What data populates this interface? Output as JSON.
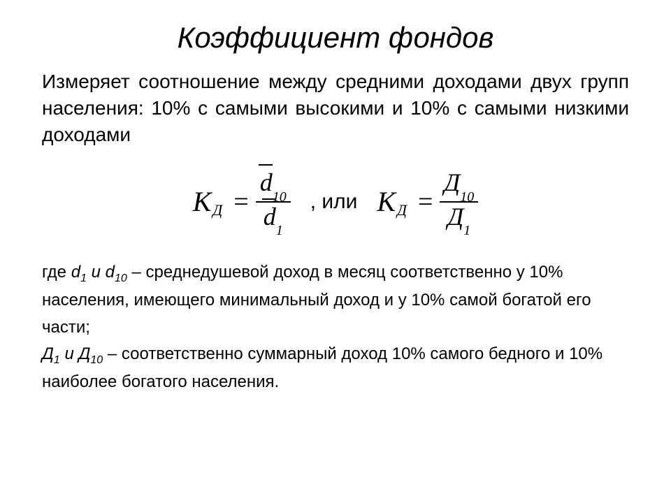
{
  "title": "Коэффициент фондов",
  "body": "Измеряет соотношение между средними доходами двух групп населения: 10% с самыми высокими и 10% с самыми низкими доходами",
  "formula": {
    "lhs_symbol": "К",
    "lhs_sub": "Д",
    "eq": "=",
    "f1_num_sym": "d",
    "f1_num_sub": "10",
    "f1_den_sym": "d",
    "f1_den_sub": "1",
    "or": ", или",
    "f2_num_sym": "Д",
    "f2_num_sub": "10",
    "f2_den_sym": "Д",
    "f2_den_sub": "1"
  },
  "legend": {
    "where": "где ",
    "d1": "d",
    "d1_sub": "1",
    "and1": " и ",
    "d10": "d",
    "d10_sub": "10",
    "d_desc": " – среднедушевой доход в месяц соответственно у 10% населения, имеющего минимальный доход и у 10% самой богатой его части;",
    "D1": " Д",
    "D1_sub": "1",
    "and2": " и ",
    "D10": "Д",
    "D10_sub": "10",
    "D_desc": " – соответственно суммарный доход 10% самого бедного и 10% наиболее богатого населения."
  },
  "style": {
    "bg": "#ffffff",
    "text_color": "#000000",
    "title_fontsize": 42,
    "body_fontsize": 28,
    "formula_fontsize": 38,
    "legend_fontsize": 24
  }
}
